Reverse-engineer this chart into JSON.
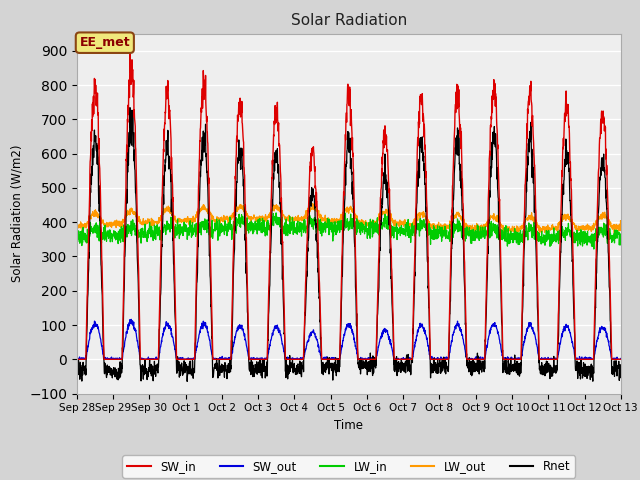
{
  "title": "Solar Radiation",
  "ylabel": "Solar Radiation (W/m2)",
  "xlabel": "Time",
  "ylim": [
    -100,
    950
  ],
  "yticks": [
    -100,
    0,
    100,
    200,
    300,
    400,
    500,
    600,
    700,
    800,
    900
  ],
  "fig_bg_color": "#d4d4d4",
  "plot_bg_color": "#eeeeee",
  "annotation_text": "EE_met",
  "annotation_bg": "#f0e87c",
  "annotation_border": "#8b4513",
  "annotation_text_color": "#8b0000",
  "colors": {
    "SW_in": "#dd0000",
    "SW_out": "#0000dd",
    "LW_in": "#00cc00",
    "LW_out": "#ff9900",
    "Rnet": "#000000"
  },
  "n_days": 15,
  "xtick_labels": [
    "Sep 28",
    "Sep 29",
    "Sep 30",
    "Oct 1",
    "Oct 2",
    "Oct 3",
    "Oct 4",
    "Oct 5",
    "Oct 6",
    "Oct 7",
    "Oct 8",
    "Oct 9",
    "Oct 10",
    "Oct 11",
    "Oct 12",
    "Oct 13"
  ],
  "legend_entries": [
    "SW_in",
    "SW_out",
    "LW_in",
    "LW_out",
    "Rnet"
  ],
  "peak_SW_in": [
    800,
    850,
    780,
    800,
    750,
    730,
    600,
    775,
    650,
    760,
    775,
    790,
    775,
    745,
    720
  ]
}
